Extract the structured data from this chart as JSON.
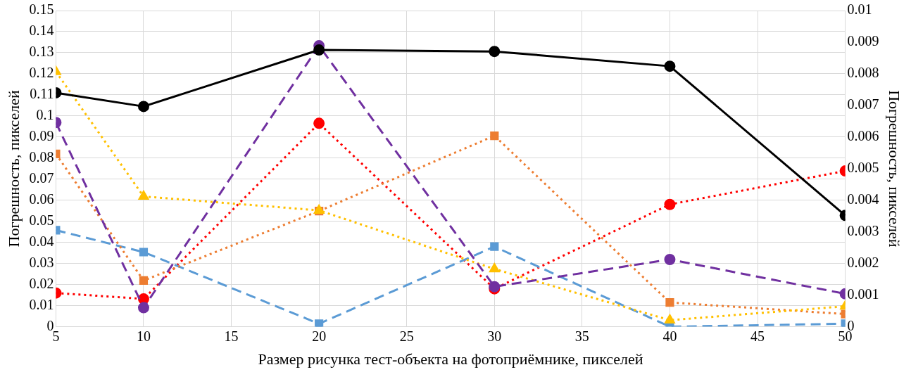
{
  "chart_data": {
    "type": "line",
    "xlabel": "Размер рисунка тест-объекта на фотоприёмнике, пикселей",
    "ylabel": "Погрешность, пикселей",
    "y2label": "Погрешность, пикселей",
    "x": [
      5,
      10,
      20,
      30,
      40,
      50
    ],
    "xlim": [
      5,
      50
    ],
    "xticks": [
      5,
      10,
      15,
      20,
      25,
      30,
      35,
      40,
      45,
      50
    ],
    "ylim": [
      0,
      0.15
    ],
    "yticks": [
      0,
      0.01,
      0.02,
      0.03,
      0.04,
      0.05,
      0.06,
      0.07,
      0.08,
      0.09,
      0.1,
      0.11,
      0.12,
      0.13,
      0.14,
      0.15
    ],
    "y2lim": [
      0,
      0.01
    ],
    "y2ticks": [
      0,
      0.001,
      0.002,
      0.003,
      0.004,
      0.005,
      0.006,
      0.007,
      0.008,
      0.009,
      0.01
    ],
    "grid": true,
    "legend": false,
    "series": [
      {
        "color": "#000000",
        "values": [
          0.111,
          0.1045,
          0.1313,
          0.1306,
          0.1236,
          0.0528
        ],
        "marker": "circle",
        "line_style": "solid"
      },
      {
        "color": "#7030a0",
        "values": [
          0.0969,
          0.009,
          0.1333,
          0.019,
          0.0319,
          0.0156
        ],
        "marker": "circle",
        "line_style": "dashed"
      },
      {
        "color": "#ffc000",
        "values": [
          0.121,
          0.0618,
          0.0552,
          0.0274,
          0.0031,
          0.0097
        ],
        "marker": "triangle",
        "line_style": "dotted"
      },
      {
        "color": "#ed7d31",
        "values": [
          0.082,
          0.0219,
          0.0549,
          0.0906,
          0.0115,
          0.006
        ],
        "marker": "square",
        "line_style": "dotted"
      },
      {
        "color": "#5b9bd5",
        "values": [
          0.0458,
          0.0354,
          0.0014,
          0.038,
          0,
          0.0014
        ],
        "marker": "square",
        "line_style": "dashed"
      },
      {
        "color": "#ff0000",
        "values": [
          0.016,
          0.0132,
          0.0965,
          0.018,
          0.058,
          0.0739
        ],
        "marker": "circle",
        "line_style": "dotted"
      }
    ]
  }
}
